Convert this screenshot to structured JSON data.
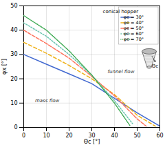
{
  "chart_data": {
    "type": "line",
    "x_label": "Θc [°]",
    "y_label": "φx [°]",
    "xlim": [
      0,
      60
    ],
    "ylim": [
      0,
      50
    ],
    "xticks": [
      0,
      10,
      20,
      30,
      40,
      50,
      60
    ],
    "yticks": [
      0,
      10,
      20,
      30,
      40,
      50
    ],
    "grid": true,
    "legend": "upper right",
    "legend_title": "conical hopper",
    "series": [
      {
        "name": "φe = 30°",
        "line_style": "solid",
        "x": [
          0,
          10,
          20,
          30,
          40,
          50,
          60
        ],
        "values": [
          30,
          26,
          22,
          18,
          12,
          6,
          0.5
        ]
      },
      {
        "name": "φe = 40°",
        "line_style": "dashed",
        "x": [
          0,
          10,
          20,
          30,
          40,
          50,
          58
        ],
        "values": [
          35,
          30.5,
          25.5,
          20,
          13.5,
          5,
          0.5
        ]
      },
      {
        "name": "φe = 50°",
        "line_style": "dashdash",
        "x": [
          0,
          10,
          20,
          30,
          40,
          50,
          54
        ],
        "values": [
          40,
          34.5,
          28.5,
          21,
          13,
          3.5,
          0.5
        ]
      },
      {
        "name": "φe = 60°",
        "line_style": "dotdash",
        "x": [
          0,
          10,
          20,
          30,
          40,
          48
        ],
        "values": [
          43,
          37.5,
          30,
          21.5,
          11,
          1.5
        ]
      },
      {
        "name": "φe = 70°",
        "line_style": "dotted",
        "x": [
          0,
          10,
          20,
          30,
          40,
          47
        ],
        "values": [
          46,
          40,
          31.5,
          21.5,
          10,
          0.5
        ]
      }
    ],
    "annotations": [
      {
        "text": "mass flow",
        "x": 5,
        "y": 11
      },
      {
        "text": "funnel flow",
        "x": 37,
        "y": 23
      },
      {
        "text": "Θc"
      }
    ]
  }
}
